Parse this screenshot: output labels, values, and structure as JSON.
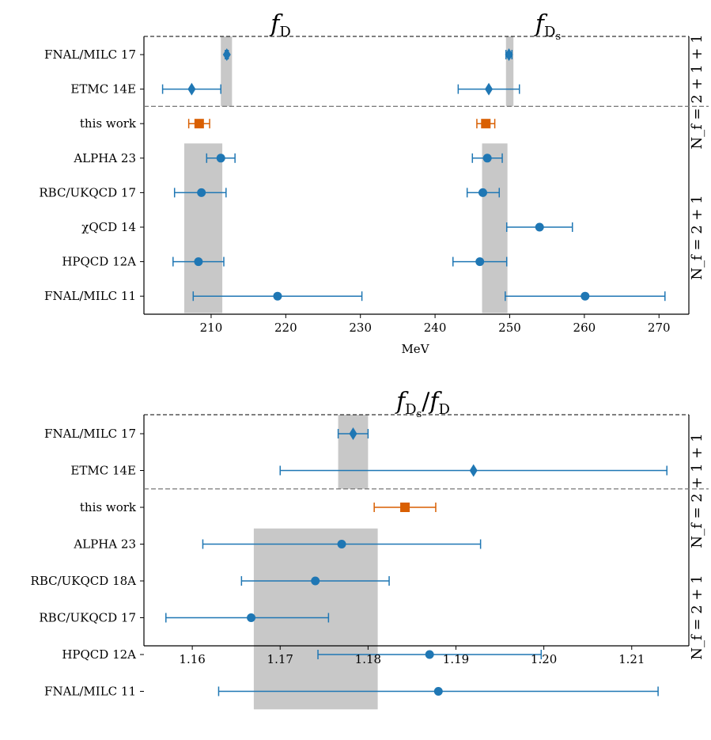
{
  "colors": {
    "blue": "#1f77b4",
    "orange": "#d95f02",
    "band": "#c8c8c8",
    "dash": "#777777"
  },
  "chart_data": [
    {
      "type": "scatter",
      "title": "f_D | f_D_s",
      "title_left": {
        "main": "f",
        "sub": "D"
      },
      "title_right": {
        "main": "f",
        "sub": "D",
        "subsub": "s"
      },
      "xlabel": "MeV",
      "xlim": [
        201,
        274
      ],
      "xticks": [
        210,
        220,
        230,
        240,
        250,
        260,
        270
      ],
      "rows": [
        "FNAL/MILC 17",
        "ETMC 14E",
        "this work",
        "ALPHA 23",
        "RBC/UKQCD 17",
        "χQCD 14",
        "HPQCD 12A",
        "FNAL/MILC 11"
      ],
      "group_labels": [
        "N_f = 2 + 1 + 1",
        "N_f = 2 + 1"
      ],
      "group_split_after_row": 2,
      "bands": [
        {
          "x0": 211.3,
          "x1": 212.8,
          "row0": 0,
          "row1": 1
        },
        {
          "x0": 249.5,
          "x1": 250.5,
          "row0": 0,
          "row1": 1
        },
        {
          "x0": 206.4,
          "x1": 211.5,
          "row0": 3,
          "row1": 7
        },
        {
          "x0": 246.3,
          "x1": 249.7,
          "row0": 3,
          "row1": 7
        }
      ],
      "series": [
        {
          "name": "f_D",
          "points": [
            {
              "row": 0,
              "x": 212.1,
              "lo": 211.9,
              "hi": 212.3,
              "marker": "diamond",
              "color": "blue"
            },
            {
              "row": 1,
              "x": 207.4,
              "lo": 203.5,
              "hi": 211.3,
              "marker": "diamond",
              "color": "blue"
            },
            {
              "row": 2,
              "x": 208.4,
              "lo": 207.0,
              "hi": 209.8,
              "marker": "square",
              "color": "orange"
            },
            {
              "row": 3,
              "x": 211.3,
              "lo": 209.4,
              "hi": 213.2,
              "marker": "circle",
              "color": "blue"
            },
            {
              "row": 4,
              "x": 208.7,
              "lo": 205.1,
              "hi": 212.0,
              "marker": "circle",
              "color": "blue"
            },
            {
              "row": 6,
              "x": 208.3,
              "lo": 204.9,
              "hi": 211.7,
              "marker": "circle",
              "color": "blue"
            },
            {
              "row": 7,
              "x": 218.9,
              "lo": 207.6,
              "hi": 230.2,
              "marker": "circle",
              "color": "blue"
            }
          ]
        },
        {
          "name": "f_D_s",
          "points": [
            {
              "row": 0,
              "x": 249.9,
              "lo": 249.5,
              "hi": 250.3,
              "marker": "diamond",
              "color": "blue"
            },
            {
              "row": 1,
              "x": 247.2,
              "lo": 243.1,
              "hi": 251.3,
              "marker": "diamond",
              "color": "blue"
            },
            {
              "row": 2,
              "x": 246.8,
              "lo": 245.6,
              "hi": 248.0,
              "marker": "square",
              "color": "orange"
            },
            {
              "row": 3,
              "x": 247.0,
              "lo": 245.0,
              "hi": 249.0,
              "marker": "circle",
              "color": "blue"
            },
            {
              "row": 4,
              "x": 246.4,
              "lo": 244.3,
              "hi": 248.6,
              "marker": "circle",
              "color": "blue"
            },
            {
              "row": 5,
              "x": 254.0,
              "lo": 249.6,
              "hi": 258.4,
              "marker": "circle",
              "color": "blue"
            },
            {
              "row": 6,
              "x": 246.0,
              "lo": 242.4,
              "hi": 249.6,
              "marker": "circle",
              "color": "blue"
            },
            {
              "row": 7,
              "x": 260.1,
              "lo": 249.4,
              "hi": 270.8,
              "marker": "circle",
              "color": "blue"
            }
          ]
        }
      ]
    },
    {
      "type": "scatter",
      "title": "f_D_s / f_D",
      "title_parts": {
        "a_main": "f",
        "a_sub": "D",
        "a_subsub": "s",
        "slash": "/",
        "b_main": "f",
        "b_sub": "D"
      },
      "xlabel": "",
      "xlim": [
        1.1545,
        1.2165
      ],
      "xticks": [
        1.16,
        1.17,
        1.18,
        1.19,
        1.2,
        1.21
      ],
      "xtick_labels": [
        "1.16",
        "1.17",
        "1.18",
        "1.19",
        "1.20",
        "1.21"
      ],
      "rows": [
        "FNAL/MILC 17",
        "ETMC 14E",
        "this work",
        "ALPHA 23",
        "RBC/UKQCD 18A",
        "RBC/UKQCD 17",
        "HPQCD 12A",
        "FNAL/MILC 11"
      ],
      "group_labels": [
        "N_f = 2 + 1 + 1",
        "N_f = 2 + 1"
      ],
      "group_split_after_row": 2,
      "bands": [
        {
          "x0": 1.1766,
          "x1": 1.18,
          "row0": 0,
          "row1": 1
        },
        {
          "x0": 1.167,
          "x1": 1.1811,
          "row0": 3,
          "row1": 7
        }
      ],
      "series": [
        {
          "name": "ratio",
          "points": [
            {
              "row": 0,
              "x": 1.1783,
              "lo": 1.1766,
              "hi": 1.18,
              "marker": "diamond",
              "color": "blue"
            },
            {
              "row": 1,
              "x": 1.192,
              "lo": 1.17,
              "hi": 1.214,
              "marker": "diamond",
              "color": "blue"
            },
            {
              "row": 2,
              "x": 1.1842,
              "lo": 1.1807,
              "hi": 1.1877,
              "marker": "square",
              "color": "orange"
            },
            {
              "row": 3,
              "x": 1.177,
              "lo": 1.1612,
              "hi": 1.1928,
              "marker": "circle",
              "color": "blue"
            },
            {
              "row": 4,
              "x": 1.174,
              "lo": 1.1656,
              "hi": 1.1824,
              "marker": "circle",
              "color": "blue"
            },
            {
              "row": 5,
              "x": 1.1667,
              "lo": 1.157,
              "hi": 1.1755,
              "marker": "circle",
              "color": "blue"
            },
            {
              "row": 6,
              "x": 1.187,
              "lo": 1.1743,
              "hi": 1.1997,
              "marker": "circle",
              "color": "blue"
            },
            {
              "row": 7,
              "x": 1.188,
              "lo": 1.163,
              "hi": 1.213,
              "marker": "circle",
              "color": "blue"
            }
          ]
        }
      ]
    }
  ]
}
